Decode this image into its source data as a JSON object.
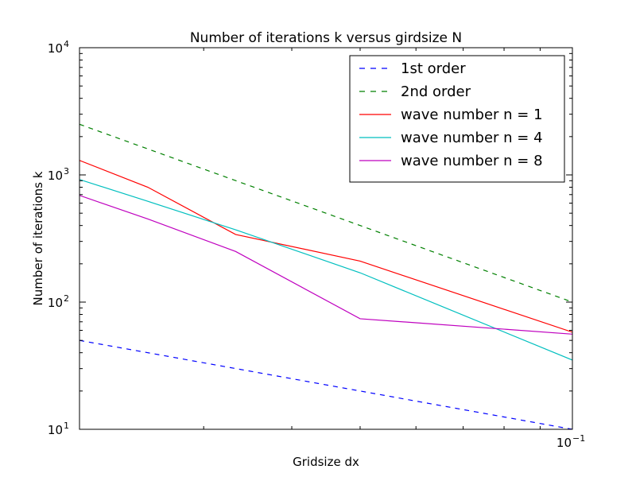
{
  "chart_data": {
    "type": "line",
    "title": "Number of iterations k versus girdsize N",
    "xlabel": "Gridsize dx",
    "ylabel": "Number of iterations k",
    "xscale": "log",
    "yscale": "log",
    "xlim": [
      0.02,
      0.1
    ],
    "ylim": [
      10,
      10000
    ],
    "grid": false,
    "legend_position": "top-right",
    "x_tick_labels": [
      {
        "value": 0.1,
        "base": "10",
        "exp": "−1"
      }
    ],
    "y_tick_labels": [
      {
        "value": 10,
        "base": "10",
        "exp": "1"
      },
      {
        "value": 100,
        "base": "10",
        "exp": "2"
      },
      {
        "value": 1000,
        "base": "10",
        "exp": "3"
      },
      {
        "value": 10000,
        "base": "10",
        "exp": "4"
      }
    ],
    "series": [
      {
        "name": "1st order",
        "color": "#0000ff",
        "style": "dashed",
        "points": [
          [
            0.02,
            50
          ],
          [
            0.1,
            10
          ]
        ]
      },
      {
        "name": "2nd order",
        "color": "#008000",
        "style": "dashed",
        "points": [
          [
            0.02,
            2500
          ],
          [
            0.1,
            100
          ]
        ]
      },
      {
        "name": "wave number n = 1",
        "color": "#ff0000",
        "style": "solid",
        "points": [
          [
            0.02,
            1300
          ],
          [
            0.025,
            800
          ],
          [
            0.0333,
            340
          ],
          [
            0.05,
            210
          ],
          [
            0.1,
            58
          ]
        ]
      },
      {
        "name": "wave number n = 4",
        "color": "#00bfbf",
        "style": "solid",
        "points": [
          [
            0.02,
            920
          ],
          [
            0.025,
            620
          ],
          [
            0.0333,
            370
          ],
          [
            0.05,
            170
          ],
          [
            0.1,
            35
          ]
        ]
      },
      {
        "name": "wave number n = 8",
        "color": "#bf00bf",
        "style": "solid",
        "points": [
          [
            0.02,
            690
          ],
          [
            0.025,
            450
          ],
          [
            0.0333,
            250
          ],
          [
            0.05,
            74
          ],
          [
            0.1,
            56
          ]
        ]
      }
    ]
  }
}
